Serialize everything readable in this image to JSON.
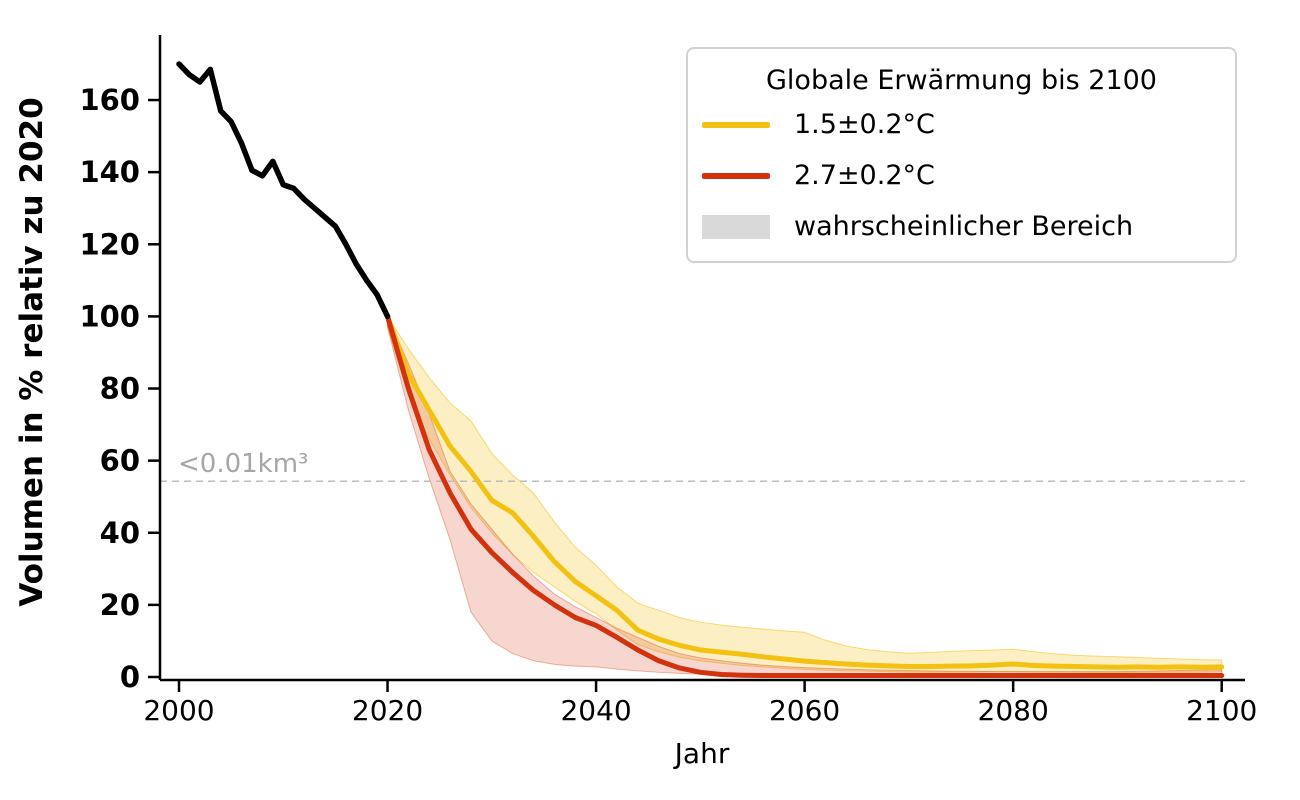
{
  "axes": {
    "x_label": "Jahr",
    "y_label": "Volumen in % relativ zu 2020"
  },
  "threshold": {
    "label": "<0.01km³",
    "value": 54.3,
    "line_color": "#bcbcbc",
    "text_color": "#a6a6a6"
  },
  "legend": {
    "title": "Globale Erwärmung bis 2100",
    "entries": [
      {
        "label": "1.5±0.2°C",
        "color": "#F2C112",
        "type": "line"
      },
      {
        "label": "2.7±0.2°C",
        "color": "#D2330D",
        "type": "line"
      },
      {
        "label": "wahrscheinlicher Bereich",
        "color": "#D9D9D9",
        "type": "patch"
      }
    ]
  },
  "chart_data": {
    "type": "line",
    "title": "",
    "xlabel": "Jahr",
    "ylabel": "Volumen in % relativ zu 2020",
    "x_ticks": [
      2000,
      2020,
      2040,
      2060,
      2080,
      2100
    ],
    "y_ticks": [
      0,
      20,
      40,
      60,
      80,
      100,
      120,
      140,
      160
    ],
    "xlim": [
      1998.2,
      2102.3
    ],
    "ylim": [
      0,
      178
    ],
    "grid": false,
    "legend_position": "upper right",
    "threshold_line": {
      "y": 54.3,
      "style": "dashed",
      "label": "<0.01km³"
    },
    "series": [
      {
        "id": "historical",
        "color": "#000000",
        "x": [
          2000,
          2001,
          2002,
          2003,
          2004,
          2005,
          2006,
          2007,
          2008,
          2009,
          2010,
          2011,
          2012,
          2013,
          2014,
          2015,
          2016,
          2017,
          2018,
          2019,
          2020
        ],
        "y": [
          170,
          167,
          165,
          168.5,
          157,
          154,
          148,
          140.5,
          139,
          143,
          136.5,
          135.5,
          132.5,
          130,
          127.5,
          125,
          120,
          114.5,
          110,
          106,
          100
        ]
      },
      {
        "id": "warming-1.5C",
        "name": "1.5±0.2°C",
        "color": "#F2C112",
        "band_fill": "rgba(242,193,18,0.25)",
        "band_edge": "rgba(242,193,18,0.55)",
        "x": [
          2020,
          2022,
          2024,
          2026,
          2028,
          2030,
          2032,
          2034,
          2036,
          2038,
          2040,
          2042,
          2044,
          2046,
          2048,
          2050,
          2052,
          2054,
          2056,
          2058,
          2060,
          2062,
          2064,
          2066,
          2068,
          2070,
          2072,
          2074,
          2076,
          2078,
          2080,
          2082,
          2084,
          2086,
          2088,
          2090,
          2092,
          2094,
          2096,
          2098,
          2100
        ],
        "y": [
          100,
          84,
          74,
          64,
          57,
          49,
          45.5,
          39,
          32,
          26.5,
          22.5,
          18.5,
          13,
          10.5,
          8.8,
          7.5,
          6.9,
          6.3,
          5.6,
          5.0,
          4.4,
          4.0,
          3.6,
          3.3,
          3.1,
          2.9,
          2.9,
          3.0,
          3.1,
          3.3,
          3.6,
          3.2,
          3.0,
          2.9,
          2.8,
          2.7,
          2.8,
          2.7,
          2.8,
          2.7,
          2.8
        ],
        "band_upper": [
          100,
          91,
          83,
          76,
          71,
          62,
          56,
          51,
          43,
          36,
          31,
          25,
          20.5,
          18.5,
          16.5,
          15.2,
          14.4,
          13.8,
          13.3,
          12.8,
          12.4,
          10.2,
          8.6,
          7.6,
          7.0,
          6.6,
          6.8,
          7.1,
          7.3,
          7.5,
          7.7,
          7.0,
          6.4,
          6.0,
          5.8,
          5.6,
          5.4,
          5.2,
          5.0,
          4.8,
          4.7
        ],
        "band_lower": [
          97,
          78,
          66,
          56,
          47,
          40,
          34,
          29,
          25,
          21,
          17.5,
          13,
          9,
          7,
          5.5,
          4.5,
          3.8,
          3.2,
          2.8,
          2.4,
          2.1,
          1.9,
          1.7,
          1.6,
          1.5,
          1.4,
          1.4,
          1.4,
          1.4,
          1.5,
          1.5,
          1.4,
          1.4,
          1.4,
          1.3,
          1.3,
          1.3,
          1.4,
          1.4,
          1.4,
          1.5
        ]
      },
      {
        "id": "warming-2.7C",
        "name": "2.7±0.2°C",
        "color": "#D2330D",
        "band_fill": "rgba(210,51,13,0.2)",
        "band_edge": "rgba(210,51,13,0.35)",
        "x": [
          2020,
          2022,
          2024,
          2026,
          2028,
          2030,
          2032,
          2034,
          2036,
          2038,
          2040,
          2042,
          2044,
          2046,
          2048,
          2050,
          2052,
          2054,
          2056,
          2058,
          2060,
          2062,
          2064,
          2066,
          2068,
          2070,
          2072,
          2074,
          2076,
          2078,
          2080,
          2082,
          2084,
          2086,
          2088,
          2090,
          2092,
          2094,
          2096,
          2098,
          2100
        ],
        "y": [
          100,
          80,
          63,
          51,
          41,
          34.5,
          29,
          24,
          20,
          16.5,
          14.3,
          11,
          7.5,
          4.5,
          2.5,
          1.3,
          0.7,
          0.5,
          0.4,
          0.4,
          0.4,
          0.4,
          0.4,
          0.4,
          0.4,
          0.4,
          0.4,
          0.4,
          0.4,
          0.4,
          0.4,
          0.4,
          0.4,
          0.4,
          0.4,
          0.4,
          0.4,
          0.4,
          0.4,
          0.4,
          0.4
        ],
        "band_upper": [
          100,
          87,
          73,
          57,
          48,
          41,
          34,
          28,
          23,
          19.5,
          16.5,
          13.5,
          11,
          8.5,
          6.5,
          5.3,
          4.5,
          3.8,
          3.3,
          2.9,
          2.6,
          2.4,
          2.2,
          2.0,
          1.9,
          1.8,
          1.7,
          1.6,
          1.6,
          1.5,
          1.5,
          1.5,
          1.5,
          1.5,
          1.5,
          1.5,
          1.6,
          1.7,
          1.8,
          1.9,
          2.0
        ],
        "band_lower": [
          97,
          74,
          55,
          38,
          18,
          10,
          6.5,
          4.5,
          3.5,
          3.0,
          2.8,
          2.2,
          1.7,
          1.3,
          1.0,
          0.8,
          0.6,
          0.5,
          0.4,
          0.35,
          0.3,
          0.3,
          0.3,
          0.2,
          0.2,
          0.2,
          0.2,
          0.2,
          0.2,
          0.2,
          0.2,
          0.2,
          0.2,
          0.2,
          0.2,
          0.2,
          0.2,
          0.2,
          0.2,
          0.2,
          0.2
        ]
      }
    ]
  }
}
